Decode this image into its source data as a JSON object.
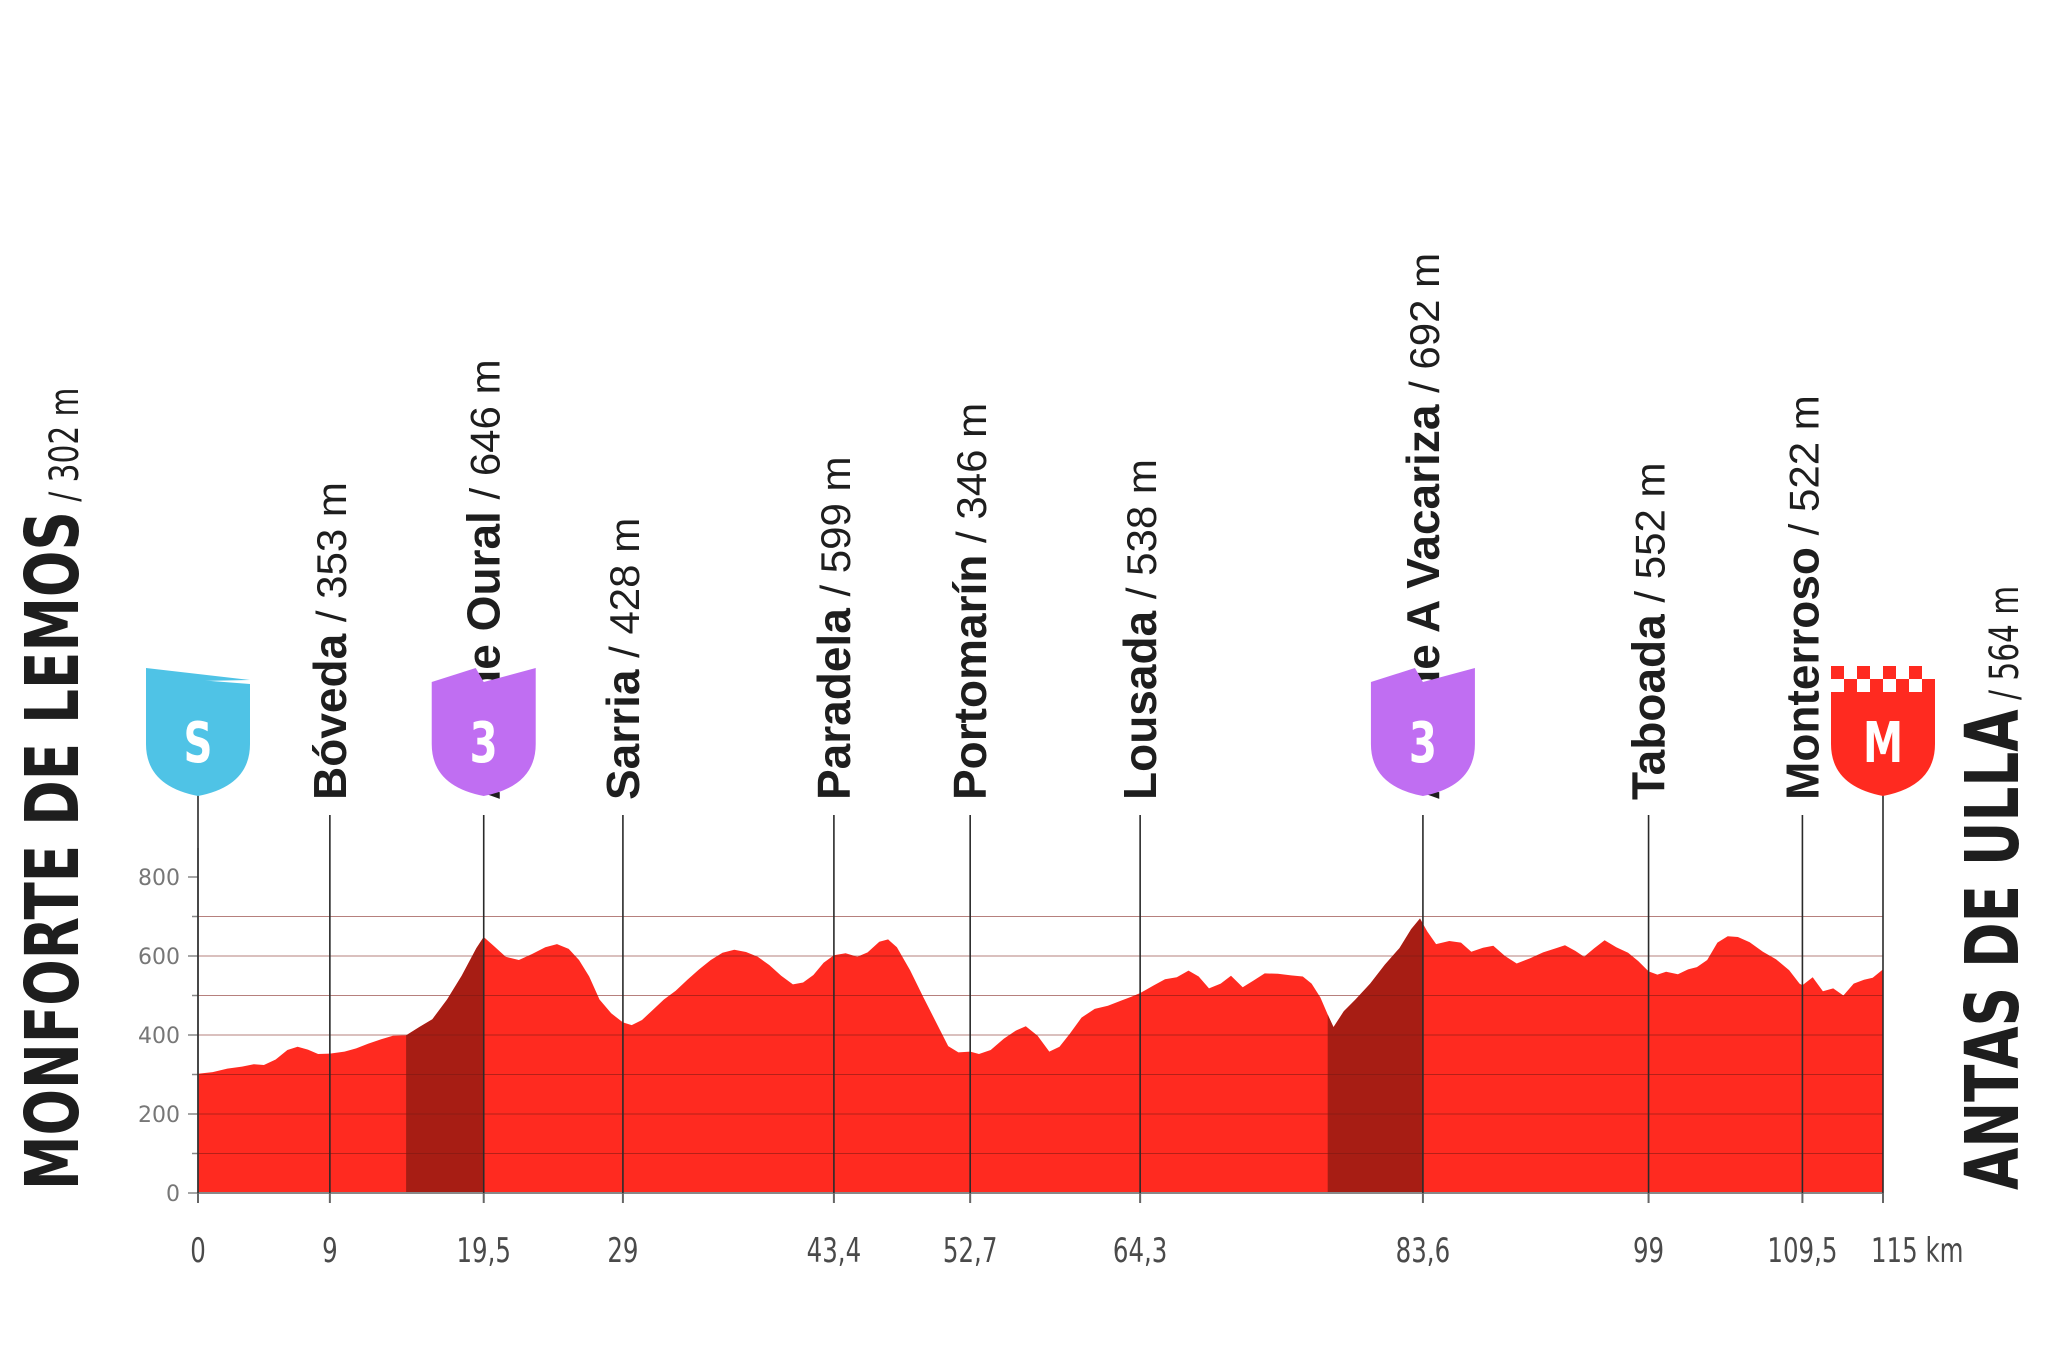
{
  "chart_data": {
    "type": "area",
    "xlabel": "",
    "ylabel": "",
    "x_unit": "km",
    "xlim": [
      0,
      115
    ],
    "ylim": [
      0,
      800
    ],
    "yticks": [
      0,
      200,
      400,
      600,
      800
    ],
    "xticks": [
      {
        "value": 0,
        "label": "0"
      },
      {
        "value": 9,
        "label": "9"
      },
      {
        "value": 19.5,
        "label": "19,5"
      },
      {
        "value": 29,
        "label": "29"
      },
      {
        "value": 43.4,
        "label": "43,4"
      },
      {
        "value": 52.7,
        "label": "52,7"
      },
      {
        "value": 64.3,
        "label": "64,3"
      },
      {
        "value": 83.6,
        "label": "83,6"
      },
      {
        "value": 99,
        "label": "99"
      },
      {
        "value": 109.5,
        "label": "109,5"
      },
      {
        "value": 115,
        "label": "115 km"
      }
    ],
    "start": {
      "name": "MONFORTE DE LEMOS",
      "altitude": "/ 302 m"
    },
    "finish": {
      "name": "ANTAS DE ULLA",
      "altitude": "/ 564 m"
    },
    "waypoints": [
      {
        "km": 9,
        "name": "Bóveda",
        "altitude": "/ 353 m"
      },
      {
        "km": 19.5,
        "name": "Alto de Oural",
        "altitude": "/ 646 m"
      },
      {
        "km": 29,
        "name": "Sarria",
        "altitude": "/ 428 m"
      },
      {
        "km": 43.4,
        "name": "Paradela",
        "altitude": "/ 599 m"
      },
      {
        "km": 52.7,
        "name": "Portomarín",
        "altitude": "/ 346 m"
      },
      {
        "km": 64.3,
        "name": "Lousada",
        "altitude": "/ 538 m"
      },
      {
        "km": 83.6,
        "name": "Alto de A Vacariza",
        "altitude": "/ 692 m"
      },
      {
        "km": 99,
        "name": "Taboada",
        "altitude": "/ 552 m"
      },
      {
        "km": 109.5,
        "name": "Monterroso",
        "altitude": "/ 522 m"
      }
    ],
    "badges": [
      {
        "km": 0,
        "letter": "S",
        "kind": "start",
        "color": "#4fc3e6"
      },
      {
        "km": 19.5,
        "letter": "3",
        "kind": "climb",
        "color": "#c06ef2"
      },
      {
        "km": 83.6,
        "letter": "3",
        "kind": "climb",
        "color": "#c06ef2"
      },
      {
        "km": 115,
        "letter": "M",
        "kind": "finish",
        "color": "#ff2a20"
      }
    ],
    "climb_sections": [
      {
        "from_km": 14.2,
        "to_km": 19.5
      },
      {
        "from_km": 77.1,
        "to_km": 83.6
      }
    ],
    "colors": {
      "profile": "#ff2a20",
      "climb": "#a71d14",
      "grid": "#7a1712"
    },
    "profile": [
      [
        0,
        302
      ],
      [
        1,
        306
      ],
      [
        2,
        315
      ],
      [
        3,
        320
      ],
      [
        3.8,
        326
      ],
      [
        4.5,
        324
      ],
      [
        5.3,
        338
      ],
      [
        6.1,
        362
      ],
      [
        6.8,
        370
      ],
      [
        7.5,
        363
      ],
      [
        8.2,
        352
      ],
      [
        9,
        353
      ],
      [
        10,
        358
      ],
      [
        10.8,
        366
      ],
      [
        11.6,
        378
      ],
      [
        12.5,
        389
      ],
      [
        13.3,
        398
      ],
      [
        14.2,
        399
      ],
      [
        15.1,
        420
      ],
      [
        16,
        440
      ],
      [
        17,
        490
      ],
      [
        18,
        550
      ],
      [
        19,
        620
      ],
      [
        19.5,
        648
      ],
      [
        20.2,
        625
      ],
      [
        21,
        598
      ],
      [
        21.9,
        590
      ],
      [
        22.8,
        605
      ],
      [
        23.7,
        622
      ],
      [
        24.5,
        630
      ],
      [
        25.3,
        618
      ],
      [
        26,
        590
      ],
      [
        26.7,
        548
      ],
      [
        27.4,
        490
      ],
      [
        28.2,
        455
      ],
      [
        29,
        432
      ],
      [
        29.6,
        425
      ],
      [
        30.3,
        438
      ],
      [
        31,
        462
      ],
      [
        31.8,
        490
      ],
      [
        32.6,
        512
      ],
      [
        33.4,
        540
      ],
      [
        34.2,
        566
      ],
      [
        35,
        590
      ],
      [
        35.8,
        608
      ],
      [
        36.6,
        616
      ],
      [
        37.4,
        610
      ],
      [
        38.2,
        598
      ],
      [
        39,
        577
      ],
      [
        39.8,
        550
      ],
      [
        40.6,
        528
      ],
      [
        41.3,
        533
      ],
      [
        42,
        552
      ],
      [
        42.7,
        583
      ],
      [
        43.4,
        602
      ],
      [
        44.2,
        607
      ],
      [
        45,
        598
      ],
      [
        45.7,
        609
      ],
      [
        46.5,
        636
      ],
      [
        47.1,
        642
      ],
      [
        47.7,
        622
      ],
      [
        48.6,
        564
      ],
      [
        49.5,
        496
      ],
      [
        50.4,
        430
      ],
      [
        51.2,
        372
      ],
      [
        51.9,
        356
      ],
      [
        52.7,
        358
      ],
      [
        53.3,
        352
      ],
      [
        54.1,
        362
      ],
      [
        55,
        391
      ],
      [
        55.8,
        411
      ],
      [
        56.5,
        422
      ],
      [
        57.3,
        398
      ],
      [
        58.1,
        358
      ],
      [
        58.8,
        370
      ],
      [
        59.5,
        403
      ],
      [
        60.3,
        444
      ],
      [
        61.2,
        466
      ],
      [
        62.1,
        474
      ],
      [
        63,
        487
      ],
      [
        63.7,
        497
      ],
      [
        64.3,
        506
      ],
      [
        65.2,
        525
      ],
      [
        66,
        541
      ],
      [
        66.8,
        546
      ],
      [
        67.6,
        563
      ],
      [
        68.3,
        548
      ],
      [
        69,
        518
      ],
      [
        69.8,
        530
      ],
      [
        70.5,
        550
      ],
      [
        71.3,
        521
      ],
      [
        72,
        537
      ],
      [
        72.8,
        556
      ],
      [
        73.7,
        555
      ],
      [
        74.6,
        551
      ],
      [
        75.4,
        548
      ],
      [
        76,
        530
      ],
      [
        76.6,
        495
      ],
      [
        77.1,
        452
      ],
      [
        77.5,
        420
      ],
      [
        78.2,
        460
      ],
      [
        79,
        490
      ],
      [
        80,
        530
      ],
      [
        81,
        578
      ],
      [
        82,
        620
      ],
      [
        82.8,
        668
      ],
      [
        83.4,
        695
      ],
      [
        83.9,
        662
      ],
      [
        84.5,
        630
      ],
      [
        85.4,
        638
      ],
      [
        86.2,
        634
      ],
      [
        86.9,
        611
      ],
      [
        87.7,
        621
      ],
      [
        88.4,
        626
      ],
      [
        89.2,
        600
      ],
      [
        90,
        581
      ],
      [
        90.9,
        594
      ],
      [
        91.8,
        609
      ],
      [
        92.7,
        620
      ],
      [
        93.3,
        627
      ],
      [
        94,
        613
      ],
      [
        94.6,
        598
      ],
      [
        95.3,
        620
      ],
      [
        96,
        640
      ],
      [
        96.8,
        622
      ],
      [
        97.6,
        608
      ],
      [
        98.3,
        587
      ],
      [
        99,
        561
      ],
      [
        99.6,
        553
      ],
      [
        100.2,
        560
      ],
      [
        101,
        554
      ],
      [
        101.7,
        566
      ],
      [
        102.3,
        572
      ],
      [
        103,
        590
      ],
      [
        103.7,
        634
      ],
      [
        104.4,
        650
      ],
      [
        105.1,
        648
      ],
      [
        105.9,
        635
      ],
      [
        106.8,
        611
      ],
      [
        107.7,
        592
      ],
      [
        108.6,
        564
      ],
      [
        109.3,
        530
      ],
      [
        109.5,
        526
      ],
      [
        110.2,
        546
      ],
      [
        110.9,
        511
      ],
      [
        111.6,
        518
      ],
      [
        112.3,
        500
      ],
      [
        113,
        530
      ],
      [
        113.7,
        540
      ],
      [
        114.3,
        545
      ],
      [
        115,
        566
      ]
    ]
  }
}
